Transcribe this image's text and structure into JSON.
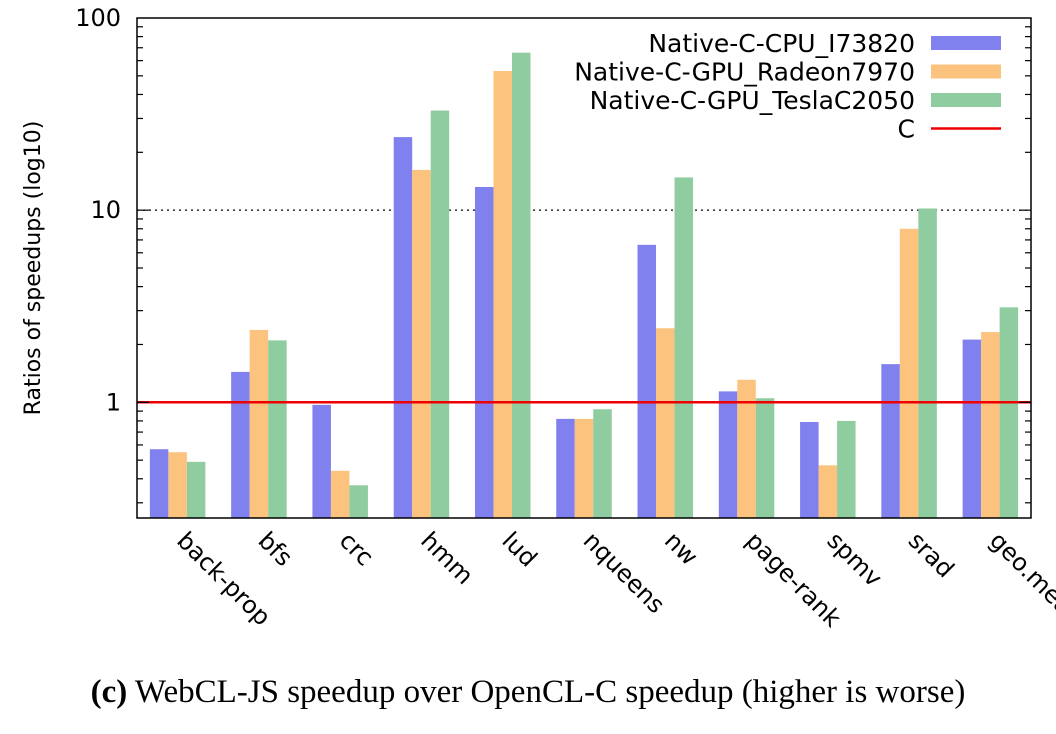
{
  "chart_data": {
    "type": "bar",
    "yscale": "log10",
    "ylabel": "Ratios of speedups (log10)",
    "ylim": [
      0.25,
      100
    ],
    "yticks": [
      {
        "value": 1,
        "label": "1"
      },
      {
        "value": 10,
        "label": "10"
      },
      {
        "value": 100,
        "label": "100"
      }
    ],
    "grid": "horizontal dotted at 10",
    "legend_position": "top-right",
    "categories": [
      "back-prop",
      "bfs",
      "crc",
      "hmm",
      "lud",
      "nqueens",
      "nw",
      "page-rank",
      "spmv",
      "srad",
      "geo.mean"
    ],
    "series": [
      {
        "name": "Native-C-CPU_I73820",
        "color": "#8080ee",
        "values": [
          0.57,
          1.44,
          0.97,
          24.0,
          13.2,
          0.82,
          6.6,
          1.14,
          0.79,
          1.58,
          2.12
        ]
      },
      {
        "name": "Native-C-GPU_Radeon7970",
        "color": "#fcc37f",
        "values": [
          0.55,
          2.38,
          0.44,
          16.2,
          53.0,
          0.82,
          2.43,
          1.31,
          0.47,
          8.0,
          2.32
        ]
      },
      {
        "name": "Native-C-GPU_TeslaC2050",
        "color": "#8fcc9f",
        "values": [
          0.49,
          2.1,
          0.37,
          33.0,
          66.0,
          0.92,
          14.8,
          1.05,
          0.8,
          10.2,
          3.12
        ]
      }
    ],
    "reference_line": {
      "name": "C",
      "value": 1,
      "color": "#ee0000"
    }
  },
  "caption": {
    "label": "(c)",
    "text": " WebCL-JS speedup over OpenCL-C speedup (higher is worse)"
  }
}
